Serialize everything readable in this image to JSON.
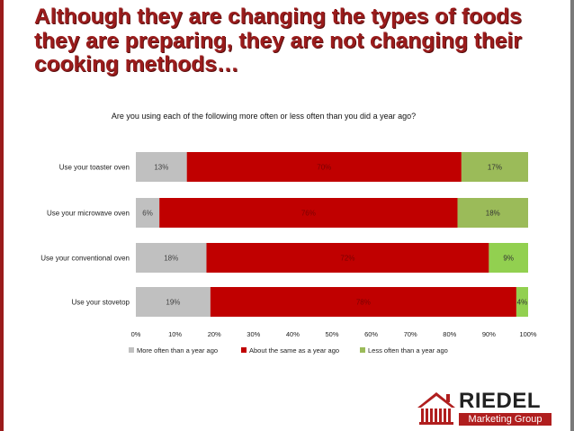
{
  "slide": {
    "headline": "Although they are changing the types of foods they are preparing, they are not changing their cooking methods…"
  },
  "colors": {
    "more": "#c0c0c0",
    "same": "#c00000",
    "less": "#9bbb59",
    "less_bright": "#92d050",
    "headline": "#9b1c1c"
  },
  "chart_data": {
    "type": "bar",
    "orientation": "horizontal",
    "stacked": "percent",
    "title": "Are you using each of the following more often or less often than you did a year ago?",
    "categories": [
      "Use your toaster oven",
      "Use your microwave oven",
      "Use your conventional oven",
      "Use your stovetop"
    ],
    "series": [
      {
        "name": "More often than a year ago",
        "values": [
          13,
          6,
          18,
          19
        ],
        "labels": [
          "13%",
          "6%",
          "18%",
          "19%"
        ]
      },
      {
        "name": "About the same as a year ago",
        "values": [
          70,
          76,
          72,
          78
        ],
        "labels": [
          "70%",
          "76%",
          "72%",
          "78%"
        ]
      },
      {
        "name": "Less often than a year ago",
        "values": [
          17,
          18,
          9,
          4
        ],
        "labels": [
          "17%",
          "18%",
          "9%",
          "4%"
        ]
      }
    ],
    "xlim": [
      0,
      100
    ],
    "x_ticks": [
      "0%",
      "10%",
      "20%",
      "30%",
      "40%",
      "50%",
      "60%",
      "70%",
      "80%",
      "90%",
      "100%"
    ],
    "legend_position": "bottom",
    "grid": false
  },
  "logo": {
    "name": "RIEDEL",
    "tagline": "Marketing Group"
  }
}
